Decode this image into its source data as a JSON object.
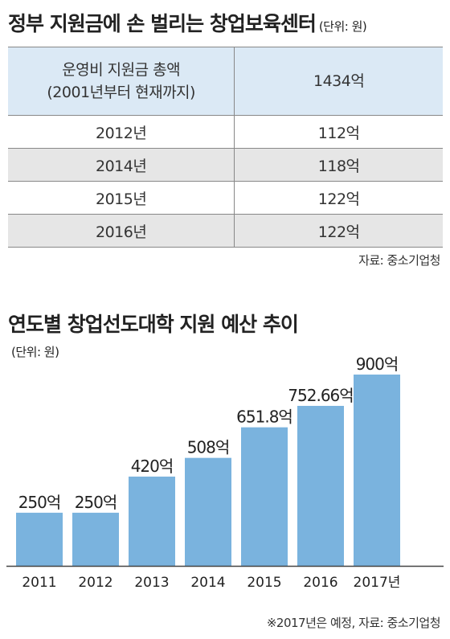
{
  "table_section": {
    "title": "정부 지원금에 손 벌리는 창업보육센터",
    "unit": "(단위: 원)",
    "header": {
      "label_line1": "운영비 지원금 총액",
      "label_line2": "(2001년부터 현재까지)",
      "value": "1434억"
    },
    "rows": [
      {
        "year": "2012년",
        "value": "112억"
      },
      {
        "year": "2014년",
        "value": "118억"
      },
      {
        "year": "2015년",
        "value": "122억"
      },
      {
        "year": "2016년",
        "value": "122억"
      }
    ],
    "source": "자료: 중소기업청"
  },
  "chart_section": {
    "title": "연도별 창업선도대학 지원 예산 추이",
    "unit": "(단위: 원)",
    "source": "※2017년은 예정, 자료: 중소기업청"
  },
  "colors": {
    "bar": "#7ab3de",
    "header_bg": "#dbe9f5",
    "row_shade": "#e6e6e6"
  },
  "chart_data": {
    "type": "bar",
    "title": "연도별 창업선도대학 지원 예산 추이",
    "ylabel": "(단위: 원)",
    "categories": [
      "2011",
      "2012",
      "2013",
      "2014",
      "2015",
      "2016",
      "2017년"
    ],
    "values": [
      250,
      250,
      420,
      508,
      651.8,
      752.66,
      900
    ],
    "labels": [
      "250억",
      "250억",
      "420억",
      "508억",
      "651.8억",
      "752.66억",
      "900억"
    ],
    "ylim": [
      0,
      900
    ],
    "grid": false
  }
}
